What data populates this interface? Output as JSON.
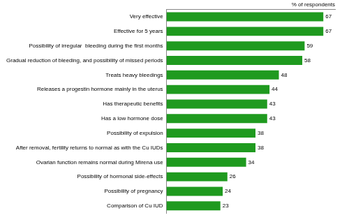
{
  "chart_data": {
    "type": "bar",
    "orientation": "horizontal",
    "xlabel": "% of respondents",
    "categories": [
      "Very effective",
      "Effective for 5 years",
      "Possibility of irregular  bleeding during the first months",
      "Gradual reduction of bleeding, and possibility of missed periods",
      "Treats heavy bleedings",
      "Releases a progestin hormone mainly in the uterus",
      "Has therapeutic benefits",
      "Has a low hormone dose",
      "Possibility of expulsion",
      "After removal, fertility returns to normal as with the Cu IUDs",
      "Ovarian function remains normal during Mirena use",
      "Possibility of hormonal side-effects",
      "Possibility of pregnancy",
      "Comparison of Cu IUD"
    ],
    "values": [
      67,
      67,
      59,
      58,
      48,
      44,
      43,
      43,
      38,
      38,
      34,
      26,
      24,
      23
    ],
    "color": "#1f9a1f",
    "xlim": [
      0,
      72
    ],
    "grid": false,
    "data_labels": true,
    "tick_labels": "y"
  }
}
